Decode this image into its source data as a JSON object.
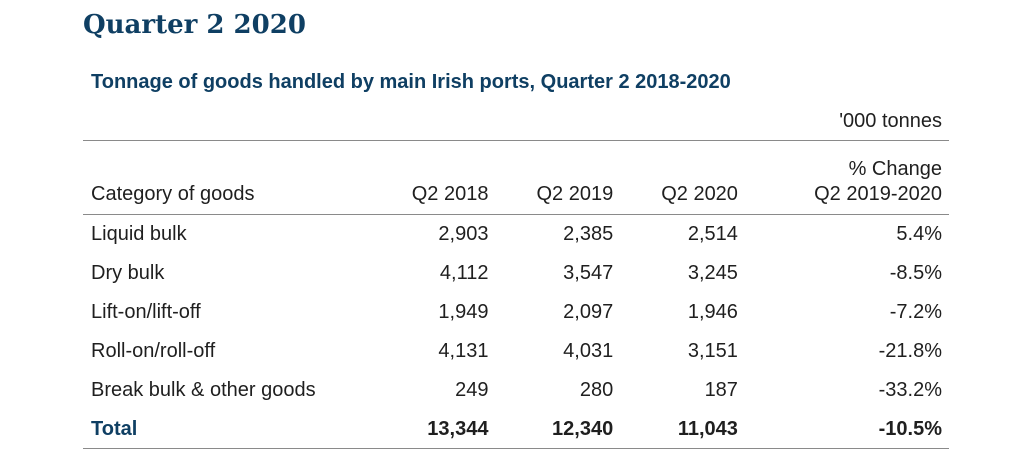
{
  "heading": "Quarter 2 2020",
  "table_title": "Tonnage of goods handled by main Irish ports, Quarter 2 2018-2020",
  "unit_note": "'000 tonnes",
  "columns": {
    "category": "Category of goods",
    "q2_2018": "Q2 2018",
    "q2_2019": "Q2 2019",
    "q2_2020": "Q2 2020",
    "pct_change_line1": "% Change",
    "pct_change_line2": "Q2 2019-2020"
  },
  "rows": [
    {
      "category": "Liquid bulk",
      "q2_2018": "2,903",
      "q2_2019": "2,385",
      "q2_2020": "2,514",
      "pct_change": "5.4%"
    },
    {
      "category": "Dry bulk",
      "q2_2018": "4,112",
      "q2_2019": "3,547",
      "q2_2020": "3,245",
      "pct_change": "-8.5%"
    },
    {
      "category": "Lift-on/lift-off",
      "q2_2018": "1,949",
      "q2_2019": "2,097",
      "q2_2020": "1,946",
      "pct_change": "-7.2%"
    },
    {
      "category": "Roll-on/roll-off",
      "q2_2018": "4,131",
      "q2_2019": "4,031",
      "q2_2020": "3,151",
      "pct_change": "-21.8%"
    },
    {
      "category": "Break bulk & other goods",
      "q2_2018": "249",
      "q2_2019": "280",
      "q2_2020": "187",
      "pct_change": "-33.2%"
    }
  ],
  "total": {
    "category": "Total",
    "q2_2018": "13,344",
    "q2_2019": "12,340",
    "q2_2020": "11,043",
    "pct_change": "-10.5%"
  },
  "colors": {
    "heading": "#0f3f63",
    "text": "#1f1f1f",
    "rule": "#8a8a8a"
  }
}
